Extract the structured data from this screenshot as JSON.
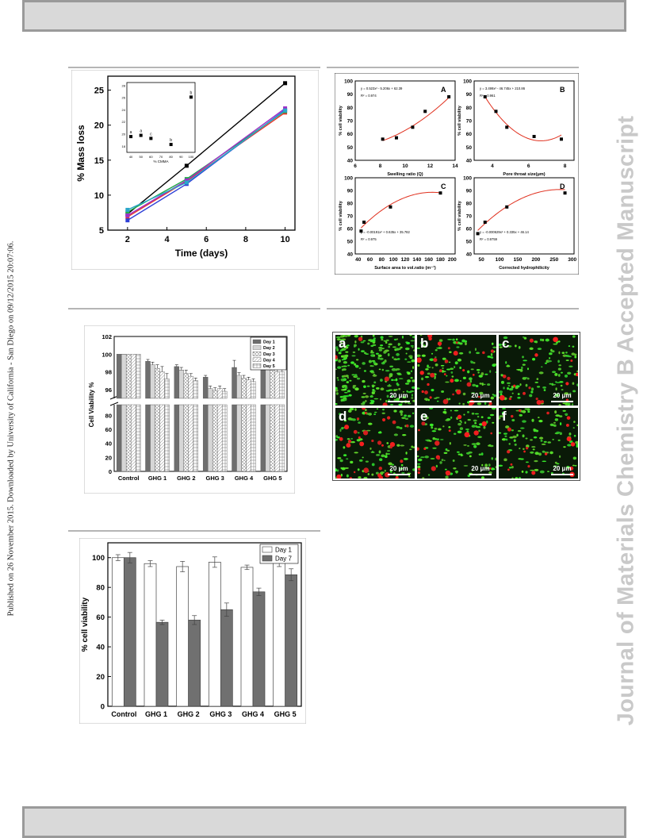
{
  "side_note": "Published on 26 November 2015. Downloaded by University of California - San Diego on 09/12/2015 20:07:06.",
  "watermark": "Journal of Materials Chemistry B Accepted Manuscript",
  "figures": {
    "mass_loss": {
      "ylabel": "% Mass loss",
      "xlabel": "Time (days)",
      "inset_xlabel": "% CMMA"
    },
    "regression": {
      "A": {
        "letter": "A",
        "ylabel": "% cell viability",
        "xlabel": "Swelling ratio (Q)",
        "equation": "y = 0.523x² - 5.206x + 62.39",
        "r2": "R² = 0.974"
      },
      "B": {
        "letter": "B",
        "ylabel": "% cell viability",
        "xlabel": "Pore throat size(μm)",
        "equation": "y = 3.499x² - 46.745x + 210.86",
        "r2": "R² = 0.961"
      },
      "C": {
        "letter": "C",
        "ylabel": "% cell viability",
        "xlabel": "Surface area to vol.ratio (m⁻¹)",
        "equation": "y = -0.00191x² + 0.635x + 35.782",
        "r2": "R² = 0.975"
      },
      "D": {
        "letter": "D",
        "ylabel": "% cell viability",
        "xlabel": "Corrected hydrophilicity",
        "equation": "y = -0.000629x² + 0.335x + 46.14",
        "r2": "R² = 0.9759"
      }
    },
    "viability_5day": {
      "ylabel": "Cell Viability %",
      "legend": [
        "Day 1",
        "Day 2",
        "Day 3",
        "Day 4",
        "Day 5"
      ]
    },
    "viability_day1_day7": {
      "ylabel": "% cell viability",
      "legend": [
        "Day 1",
        "Day 7"
      ]
    },
    "micrographs": [
      {
        "letter": "a",
        "scale": "20 μm"
      },
      {
        "letter": "b",
        "scale": "20 μm"
      },
      {
        "letter": "c",
        "scale": "20 μm"
      },
      {
        "letter": "d",
        "scale": "20 μm"
      },
      {
        "letter": "e",
        "scale": "20 μm"
      },
      {
        "letter": "f",
        "scale": "20 μm"
      }
    ]
  },
  "chart_data": [
    {
      "type": "line",
      "title": "",
      "xlabel": "Time (days)",
      "ylabel": "% Mass loss",
      "xlim": [
        1,
        10.5
      ],
      "ylim": [
        5,
        27
      ],
      "x_ticks": [
        2,
        4,
        6,
        8,
        10
      ],
      "y_ticks": [
        5,
        10,
        15,
        20,
        25
      ],
      "series": [
        {
          "color": "#000000",
          "x": [
            2,
            5,
            10
          ],
          "y": [
            7.3,
            14.2,
            26.0
          ]
        },
        {
          "color": "#e8352b",
          "x": [
            2,
            5,
            10
          ],
          "y": [
            6.9,
            12.0,
            21.8
          ]
        },
        {
          "color": "#2e3fd6",
          "x": [
            2,
            5,
            10
          ],
          "y": [
            6.4,
            11.6,
            22.2
          ]
        },
        {
          "color": "#22a84a",
          "x": [
            2,
            5,
            10
          ],
          "y": [
            7.6,
            12.3,
            22.0
          ]
        },
        {
          "color": "#9b30c8",
          "x": [
            2,
            5,
            10
          ],
          "y": [
            7.1,
            12.1,
            22.4
          ]
        },
        {
          "color": "#2aa6c9",
          "x": [
            2,
            5,
            10
          ],
          "y": [
            7.9,
            11.8,
            22.1
          ]
        }
      ],
      "inset": {
        "xlabel": "% CMMA",
        "x_ticks": [
          40,
          50,
          60,
          70,
          80,
          90,
          100
        ],
        "y_ticks": [
          18,
          20,
          22,
          24,
          26,
          28
        ],
        "xlim": [
          36,
          104
        ],
        "ylim": [
          17,
          28.5
        ],
        "x": [
          40,
          50,
          60,
          80,
          100
        ],
        "y": [
          19.6,
          19.8,
          19.3,
          18.3,
          26.1
        ],
        "labels": [
          "a",
          "a",
          "c",
          "b",
          "b"
        ]
      }
    },
    {
      "type": "scatter",
      "panel": "A",
      "xlabel": "Swelling ratio (Q)",
      "ylabel": "% cell viability",
      "xlim": [
        6,
        14
      ],
      "ylim": [
        40,
        100
      ],
      "x_ticks": [
        6,
        8,
        10,
        12,
        14
      ],
      "y_ticks": [
        40,
        50,
        60,
        70,
        80,
        90,
        100
      ],
      "x": [
        8.2,
        9.3,
        10.6,
        11.6,
        13.5
      ],
      "y": [
        56,
        57,
        65,
        77,
        88
      ],
      "fit": [
        0.523,
        -5.206,
        62.39
      ]
    },
    {
      "type": "scatter",
      "panel": "B",
      "xlabel": "Pore throat size(μm)",
      "ylabel": "% cell viability",
      "xlim": [
        3,
        8.5
      ],
      "ylim": [
        40,
        100
      ],
      "x_ticks": [
        4,
        6,
        8
      ],
      "y_ticks": [
        40,
        50,
        60,
        70,
        80,
        90,
        100
      ],
      "x": [
        3.6,
        4.2,
        4.8,
        6.3,
        7.8
      ],
      "y": [
        88,
        77,
        65,
        58,
        56
      ],
      "fit": [
        3.499,
        -46.745,
        210.86
      ]
    },
    {
      "type": "scatter",
      "panel": "C",
      "xlabel": "Surface area to vol.ratio (m⁻¹)",
      "ylabel": "% cell viability",
      "xlim": [
        35,
        205
      ],
      "ylim": [
        40,
        100
      ],
      "x_ticks": [
        40,
        60,
        80,
        100,
        120,
        140,
        160,
        180,
        200
      ],
      "y_ticks": [
        40,
        50,
        60,
        70,
        80,
        90,
        100
      ],
      "x": [
        45,
        50,
        95,
        180
      ],
      "y": [
        58,
        65,
        77,
        88
      ],
      "fit": [
        -0.00191,
        0.635,
        35.782
      ]
    },
    {
      "type": "scatter",
      "panel": "D",
      "xlabel": "Corrected hydrophilicity",
      "ylabel": "% cell viability",
      "xlim": [
        30,
        305
      ],
      "ylim": [
        40,
        100
      ],
      "x_ticks": [
        50,
        100,
        150,
        200,
        250,
        300
      ],
      "y_ticks": [
        40,
        50,
        60,
        70,
        80,
        90,
        100
      ],
      "x": [
        40,
        60,
        120,
        280
      ],
      "y": [
        56,
        65,
        77,
        88
      ],
      "fit": [
        -0.000629,
        0.335,
        46.14
      ]
    },
    {
      "type": "bar",
      "ylabel": "Cell Viability %",
      "categories": [
        "Control",
        "GHG 1",
        "GHG 2",
        "GHG 3",
        "GHG 4",
        "GHG 5"
      ],
      "legend": [
        "Day 1",
        "Day 2",
        "Day 3",
        "Day 4",
        "Day 5"
      ],
      "y_ticks_upper": [
        96,
        98,
        100,
        102
      ],
      "y_ticks_lower": [
        0,
        20,
        40,
        60,
        80
      ],
      "series": [
        {
          "name": "Day 1",
          "values": [
            100,
            99.2,
            98.6,
            97.4,
            98.5,
            99.0
          ],
          "err": [
            0,
            0.2,
            0.2,
            0.2,
            0.8,
            0.2
          ]
        },
        {
          "name": "Day 2",
          "values": [
            100,
            98.8,
            98.2,
            96.1,
            97.6,
            98.5
          ],
          "err": [
            0,
            0.3,
            0.3,
            0.3,
            0.3,
            0.3
          ]
        },
        {
          "name": "Day 3",
          "values": [
            100,
            98.4,
            97.8,
            95.9,
            97.3,
            98.2
          ],
          "err": [
            0,
            0.4,
            0.4,
            0.3,
            0.3,
            0.4
          ]
        },
        {
          "name": "Day 4",
          "values": [
            100,
            98.0,
            97.5,
            96.1,
            97.1,
            98.0
          ],
          "err": [
            0,
            0.6,
            0.3,
            0.3,
            0.3,
            0.4
          ]
        },
        {
          "name": "Day 5",
          "values": [
            100,
            97.2,
            97.0,
            95.8,
            96.9,
            98.0
          ],
          "err": [
            0,
            0.6,
            0.3,
            0.3,
            0.3,
            0.3
          ]
        }
      ]
    },
    {
      "type": "bar",
      "ylabel": "% cell viability",
      "categories": [
        "Control",
        "GHG 1",
        "GHG 2",
        "GHG 3",
        "GHG 4",
        "GHG 5"
      ],
      "ylim": [
        0,
        110
      ],
      "y_ticks": [
        0,
        20,
        40,
        60,
        80,
        100
      ],
      "series": [
        {
          "name": "Day 1",
          "color": "#ffffff",
          "values": [
            100,
            96,
            94,
            97,
            93.5,
            97
          ],
          "err": [
            2,
            2,
            3.5,
            3.5,
            1.5,
            3
          ]
        },
        {
          "name": "Day 7",
          "color": "#707070",
          "values": [
            100,
            56.5,
            58,
            65,
            77,
            88.5
          ],
          "err": [
            3.5,
            1.5,
            3,
            4.5,
            2.5,
            4
          ]
        }
      ]
    }
  ]
}
